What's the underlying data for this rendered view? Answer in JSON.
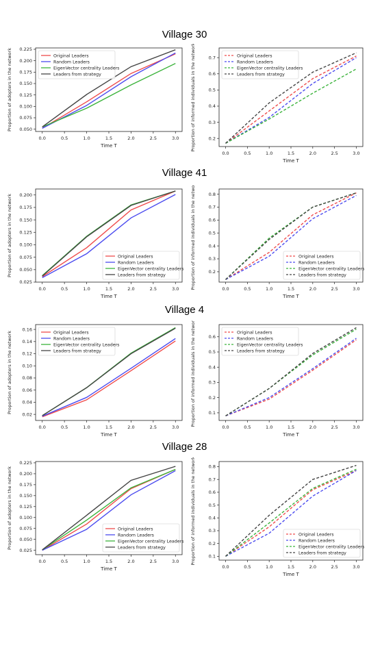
{
  "colors": {
    "Original Leaders": "#ef4b4b",
    "Random Leaders": "#4b4bef",
    "EigenVector centrality Leaders": "#3bb33b",
    "Leaders from strategy": "#444444"
  },
  "villages": [
    {
      "title": "Village 30",
      "charts": [
        {
          "type": "line",
          "linestyle": "solid",
          "legend": "top-left",
          "xlabel": "Time T",
          "ylabel": "Proportion of adopters in the network",
          "x": [
            0,
            1,
            2,
            3
          ],
          "xticks": [
            0.0,
            0.5,
            1.0,
            1.5,
            2.0,
            2.5,
            3.0
          ],
          "yticks": [
            0.05,
            0.075,
            0.1,
            0.125,
            0.15,
            0.175,
            0.2,
            0.225
          ],
          "ylim": [
            0.045,
            0.228
          ],
          "series": [
            {
              "name": "Original Leaders",
              "values": [
                0.052,
                0.11,
                0.172,
                0.215
              ]
            },
            {
              "name": "Random Leaders",
              "values": [
                0.052,
                0.102,
                0.165,
                0.217
              ]
            },
            {
              "name": "EigenVector centrality Leaders",
              "values": [
                0.055,
                0.096,
                0.147,
                0.194
              ]
            },
            {
              "name": "Leaders from strategy",
              "values": [
                0.055,
                0.126,
                0.187,
                0.224
              ]
            }
          ]
        },
        {
          "type": "line",
          "linestyle": "dashed",
          "legend": "top-left",
          "xlabel": "Time T",
          "ylabel": "Proportion of informed individuals in the network",
          "x": [
            0,
            1,
            2,
            3
          ],
          "xticks": [
            0.0,
            0.5,
            1.0,
            1.5,
            2.0,
            2.5,
            3.0
          ],
          "yticks": [
            0.2,
            0.3,
            0.4,
            0.5,
            0.6,
            0.7
          ],
          "ylim": [
            0.15,
            0.76
          ],
          "series": [
            {
              "name": "Original Leaders",
              "values": [
                0.17,
                0.37,
                0.57,
                0.71
              ]
            },
            {
              "name": "Random Leaders",
              "values": [
                0.17,
                0.33,
                0.54,
                0.7
              ]
            },
            {
              "name": "EigenVector centrality Leaders",
              "values": [
                0.17,
                0.32,
                0.48,
                0.63
              ]
            },
            {
              "name": "Leaders from strategy",
              "values": [
                0.17,
                0.42,
                0.61,
                0.73
              ]
            }
          ]
        }
      ]
    },
    {
      "title": "Village 41",
      "charts": [
        {
          "type": "line",
          "linestyle": "solid",
          "legend": "bottom-right",
          "xlabel": "Time T",
          "ylabel": "Proportion of adopters in the network",
          "x": [
            0,
            1,
            2,
            3
          ],
          "xticks": [
            0.0,
            0.5,
            1.0,
            1.5,
            2.0,
            2.5,
            3.0
          ],
          "yticks": [
            0.025,
            0.05,
            0.075,
            0.1,
            0.125,
            0.15,
            0.175,
            0.2
          ],
          "ylim": [
            0.025,
            0.212
          ],
          "series": [
            {
              "name": "Original Leaders",
              "values": [
                0.036,
                0.094,
                0.17,
                0.208
              ]
            },
            {
              "name": "Random Leaders",
              "values": [
                0.034,
                0.082,
                0.154,
                0.201
              ]
            },
            {
              "name": "EigenVector centrality Leaders",
              "values": [
                0.038,
                0.117,
                0.18,
                0.208
              ]
            },
            {
              "name": "Leaders from strategy",
              "values": [
                0.037,
                0.116,
                0.179,
                0.208
              ]
            }
          ]
        },
        {
          "type": "line",
          "linestyle": "dashed",
          "legend": "bottom-right",
          "xlabel": "Time T",
          "ylabel": "Proportion of informed individuals in the network",
          "x": [
            0,
            1,
            2,
            3
          ],
          "xticks": [
            0.0,
            0.5,
            1.0,
            1.5,
            2.0,
            2.5,
            3.0
          ],
          "yticks": [
            0.2,
            0.3,
            0.4,
            0.5,
            0.6,
            0.7,
            0.8
          ],
          "ylim": [
            0.12,
            0.84
          ],
          "series": [
            {
              "name": "Original Leaders",
              "values": [
                0.14,
                0.35,
                0.64,
                0.81
              ]
            },
            {
              "name": "Random Leaders",
              "values": [
                0.14,
                0.32,
                0.61,
                0.79
              ]
            },
            {
              "name": "EigenVector centrality Leaders",
              "values": [
                0.14,
                0.46,
                0.7,
                0.81
              ]
            },
            {
              "name": "Leaders from strategy",
              "values": [
                0.14,
                0.45,
                0.7,
                0.81
              ]
            }
          ]
        }
      ]
    },
    {
      "title": "Village 4",
      "charts": [
        {
          "type": "line",
          "linestyle": "solid",
          "legend": "top-left",
          "xlabel": "Time T",
          "ylabel": "Proportion of adopters in the network",
          "x": [
            0,
            1,
            2,
            3
          ],
          "xticks": [
            0.0,
            0.5,
            1.0,
            1.5,
            2.0,
            2.5,
            3.0
          ],
          "yticks": [
            0.02,
            0.04,
            0.06,
            0.08,
            0.1,
            0.12,
            0.14,
            0.16
          ],
          "ylim": [
            0.01,
            0.168
          ],
          "series": [
            {
              "name": "Original Leaders",
              "values": [
                0.016,
                0.044,
                0.092,
                0.141
              ]
            },
            {
              "name": "Random Leaders",
              "values": [
                0.017,
                0.048,
                0.096,
                0.145
              ]
            },
            {
              "name": "EigenVector centrality Leaders",
              "values": [
                0.018,
                0.064,
                0.121,
                0.163
              ]
            },
            {
              "name": "Leaders from strategy",
              "values": [
                0.018,
                0.064,
                0.12,
                0.162
              ]
            }
          ]
        },
        {
          "type": "line",
          "linestyle": "dashed",
          "legend": "top-left",
          "xlabel": "Time T",
          "ylabel": "Proportion of informed individuals in the network",
          "x": [
            0,
            1,
            2,
            3
          ],
          "xticks": [
            0.0,
            0.5,
            1.0,
            1.5,
            2.0,
            2.5,
            3.0
          ],
          "yticks": [
            0.1,
            0.2,
            0.3,
            0.4,
            0.5,
            0.6
          ],
          "ylim": [
            0.05,
            0.68
          ],
          "series": [
            {
              "name": "Original Leaders",
              "values": [
                0.08,
                0.19,
                0.38,
                0.58
              ]
            },
            {
              "name": "Random Leaders",
              "values": [
                0.08,
                0.2,
                0.39,
                0.59
              ]
            },
            {
              "name": "EigenVector centrality Leaders",
              "values": [
                0.08,
                0.26,
                0.48,
                0.65
              ]
            },
            {
              "name": "Leaders from strategy",
              "values": [
                0.08,
                0.26,
                0.49,
                0.66
              ]
            }
          ]
        }
      ]
    },
    {
      "title": "Village 28",
      "charts": [
        {
          "type": "line",
          "linestyle": "solid",
          "legend": "bottom-right",
          "xlabel": "Time T",
          "ylabel": "Proportion of adopters in the network",
          "x": [
            0,
            1,
            2,
            3
          ],
          "xticks": [
            0.0,
            0.5,
            1.0,
            1.5,
            2.0,
            2.5,
            3.0
          ],
          "yticks": [
            0.025,
            0.05,
            0.075,
            0.1,
            0.125,
            0.15,
            0.175,
            0.2,
            0.225
          ],
          "ylim": [
            0.015,
            0.228
          ],
          "series": [
            {
              "name": "Original Leaders",
              "values": [
                0.025,
                0.085,
                0.166,
                0.21
              ]
            },
            {
              "name": "Random Leaders",
              "values": [
                0.025,
                0.073,
                0.152,
                0.207
              ]
            },
            {
              "name": "EigenVector centrality Leaders",
              "values": [
                0.026,
                0.094,
                0.168,
                0.21
              ]
            },
            {
              "name": "Leaders from strategy",
              "values": [
                0.026,
                0.105,
                0.185,
                0.217
              ]
            }
          ]
        },
        {
          "type": "line",
          "linestyle": "dashed",
          "legend": "bottom-right",
          "xlabel": "Time T",
          "ylabel": "Proportion of informed individuals in the network",
          "x": [
            0,
            1,
            2,
            3
          ],
          "xticks": [
            0.0,
            0.5,
            1.0,
            1.5,
            2.0,
            2.5,
            3.0
          ],
          "yticks": [
            0.1,
            0.2,
            0.3,
            0.4,
            0.5,
            0.6,
            0.7,
            0.8
          ],
          "ylim": [
            0.07,
            0.84
          ],
          "series": [
            {
              "name": "Original Leaders",
              "values": [
                0.1,
                0.33,
                0.62,
                0.77
              ]
            },
            {
              "name": "Random Leaders",
              "values": [
                0.1,
                0.28,
                0.57,
                0.77
              ]
            },
            {
              "name": "EigenVector centrality Leaders",
              "values": [
                0.1,
                0.36,
                0.63,
                0.78
              ]
            },
            {
              "name": "Leaders from strategy",
              "values": [
                0.1,
                0.42,
                0.7,
                0.81
              ]
            }
          ]
        }
      ]
    }
  ]
}
